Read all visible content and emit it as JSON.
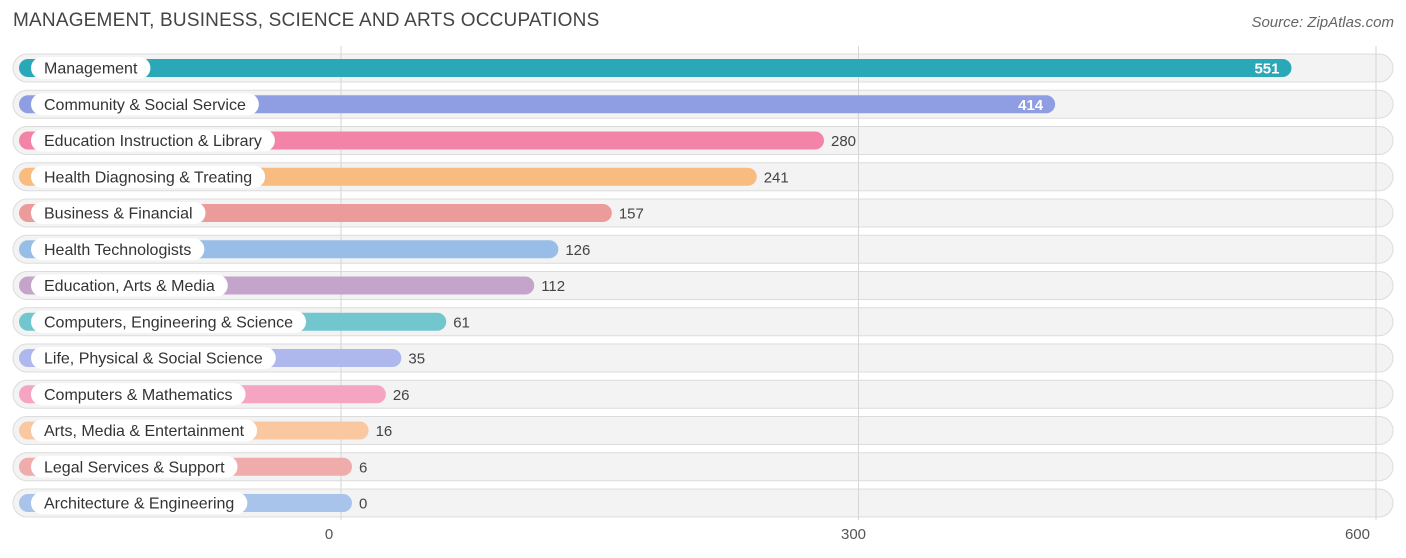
{
  "title": "MANAGEMENT, BUSINESS, SCIENCE AND ARTS OCCUPATIONS",
  "source": "Source: ZipAtlas.com",
  "chart_data": {
    "type": "bar",
    "orientation": "horizontal",
    "categories": [
      "Management",
      "Community & Social Service",
      "Education Instruction & Library",
      "Health Diagnosing & Treating",
      "Business & Financial",
      "Health Technologists",
      "Education, Arts & Media",
      "Computers, Engineering & Science",
      "Life, Physical & Social Science",
      "Computers & Mathematics",
      "Arts, Media & Entertainment",
      "Legal Services & Support",
      "Architecture & Engineering"
    ],
    "values": [
      551,
      414,
      280,
      241,
      157,
      126,
      112,
      61,
      35,
      26,
      16,
      6,
      0
    ],
    "colors": [
      "#2aa8b8",
      "#8f9ee2",
      "#f384a8",
      "#f8bb80",
      "#eb9c9a",
      "#98bde6",
      "#c4a4cb",
      "#72c7cf",
      "#aeb8ec",
      "#f5a5c1",
      "#f9c8a0",
      "#f0abab",
      "#a8c4ea"
    ],
    "xlim": [
      0,
      600
    ],
    "xticks": [
      0,
      300,
      600
    ],
    "grid": true
  }
}
